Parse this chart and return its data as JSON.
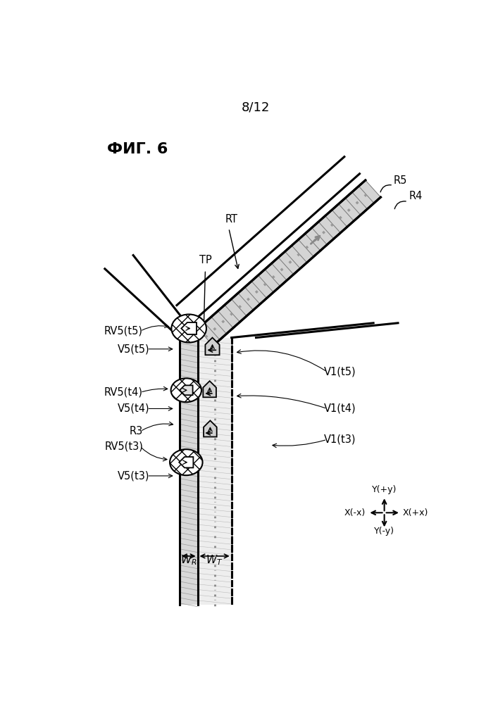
{
  "page_number": "8/12",
  "fig_label": "ФИГ. 6",
  "lc": "#000000",
  "bg": "#ffffff",
  "gray": "#aaaaaa",
  "road_gray": "#cccccc",
  "road_dark": "#888888",
  "labels": {
    "RT": "RT",
    "TP": "TP",
    "R3": "R3",
    "R4": "R4",
    "R5": "R5",
    "RV5t5": "RV5(t5)",
    "RV5t4": "RV5(t4)",
    "RV5t3": "RV5(t3)",
    "V5t5": "V5(t5)",
    "V5t4": "V5(t4)",
    "V5t3": "V5(t3)",
    "V1t5": "V1(t5)",
    "V1t4": "V1(t4)",
    "V1t3": "V1(t3)",
    "Xpos": "X(+x)",
    "Xneg": "X(-x)",
    "Ypos": "Y(+y)",
    "Yneg": "Y(-y)"
  }
}
